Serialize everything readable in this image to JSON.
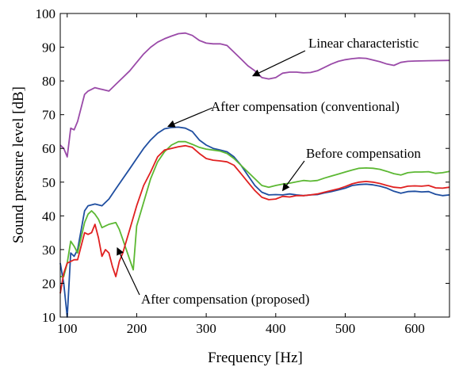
{
  "chart_data": {
    "type": "line",
    "title": "",
    "xlabel": "Frequency [Hz]",
    "ylabel": "Sound pressure level [dB]",
    "xlim": [
      90,
      650
    ],
    "ylim": [
      10,
      100
    ],
    "xticks": [
      100,
      200,
      300,
      400,
      500,
      600
    ],
    "yticks": [
      10,
      20,
      30,
      40,
      50,
      60,
      70,
      80,
      90,
      100
    ],
    "grid": false,
    "series": [
      {
        "name": "Linear characteristic",
        "color": "#9a4aa8",
        "points": [
          [
            90,
            61
          ],
          [
            95,
            60
          ],
          [
            100,
            57.5
          ],
          [
            105,
            66
          ],
          [
            110,
            65.5
          ],
          [
            115,
            68
          ],
          [
            125,
            76
          ],
          [
            130,
            77
          ],
          [
            140,
            78
          ],
          [
            150,
            77.5
          ],
          [
            160,
            77
          ],
          [
            170,
            79
          ],
          [
            180,
            81
          ],
          [
            190,
            83
          ],
          [
            200,
            85.5
          ],
          [
            210,
            88
          ],
          [
            220,
            90
          ],
          [
            230,
            91.5
          ],
          [
            240,
            92.5
          ],
          [
            250,
            93.3
          ],
          [
            260,
            94
          ],
          [
            270,
            94.2
          ],
          [
            280,
            93.5
          ],
          [
            290,
            92
          ],
          [
            300,
            91.2
          ],
          [
            310,
            91
          ],
          [
            320,
            91
          ],
          [
            330,
            90.5
          ],
          [
            340,
            88.5
          ],
          [
            350,
            86.5
          ],
          [
            360,
            84.5
          ],
          [
            370,
            83
          ],
          [
            380,
            81
          ],
          [
            390,
            80.6
          ],
          [
            400,
            81
          ],
          [
            410,
            82.3
          ],
          [
            420,
            82.6
          ],
          [
            430,
            82.6
          ],
          [
            440,
            82.4
          ],
          [
            450,
            82.5
          ],
          [
            460,
            83
          ],
          [
            470,
            84
          ],
          [
            480,
            85
          ],
          [
            490,
            85.8
          ],
          [
            500,
            86.3
          ],
          [
            510,
            86.6
          ],
          [
            520,
            86.8
          ],
          [
            530,
            86.7
          ],
          [
            540,
            86.2
          ],
          [
            550,
            85.7
          ],
          [
            560,
            85
          ],
          [
            570,
            84.6
          ],
          [
            580,
            85.5
          ],
          [
            590,
            85.8
          ],
          [
            600,
            85.9
          ],
          [
            620,
            86
          ],
          [
            650,
            86.1
          ]
        ]
      },
      {
        "name": "After compensation (conventional)",
        "color": "#1f4ea0",
        "points": [
          [
            90,
            26
          ],
          [
            95,
            20
          ],
          [
            100,
            10
          ],
          [
            105,
            29
          ],
          [
            110,
            28
          ],
          [
            115,
            30
          ],
          [
            125,
            41.5
          ],
          [
            130,
            43
          ],
          [
            140,
            43.5
          ],
          [
            150,
            43
          ],
          [
            160,
            45
          ],
          [
            170,
            48
          ],
          [
            180,
            51
          ],
          [
            190,
            54
          ],
          [
            200,
            57
          ],
          [
            210,
            60
          ],
          [
            220,
            62.5
          ],
          [
            230,
            64.5
          ],
          [
            240,
            65.8
          ],
          [
            250,
            66.2
          ],
          [
            260,
            66.3
          ],
          [
            270,
            66
          ],
          [
            280,
            65
          ],
          [
            290,
            62.5
          ],
          [
            300,
            61
          ],
          [
            310,
            60
          ],
          [
            320,
            59.5
          ],
          [
            330,
            59
          ],
          [
            340,
            57.5
          ],
          [
            350,
            55
          ],
          [
            360,
            52
          ],
          [
            370,
            49
          ],
          [
            380,
            47
          ],
          [
            390,
            46.2
          ],
          [
            400,
            46.3
          ],
          [
            410,
            46.2
          ],
          [
            420,
            46.5
          ],
          [
            430,
            46.2
          ],
          [
            440,
            46
          ],
          [
            450,
            46.2
          ],
          [
            460,
            46.3
          ],
          [
            470,
            46.8
          ],
          [
            480,
            47.2
          ],
          [
            490,
            47.7
          ],
          [
            500,
            48.2
          ],
          [
            510,
            49
          ],
          [
            520,
            49.3
          ],
          [
            530,
            49.4
          ],
          [
            540,
            49.2
          ],
          [
            550,
            48.8
          ],
          [
            560,
            48.2
          ],
          [
            570,
            47.3
          ],
          [
            580,
            46.7
          ],
          [
            590,
            47.2
          ],
          [
            600,
            47.3
          ],
          [
            610,
            47.1
          ],
          [
            620,
            47.2
          ],
          [
            630,
            46.4
          ],
          [
            640,
            46
          ],
          [
            650,
            46.2
          ]
        ]
      },
      {
        "name": "Before compensation",
        "color": "#5cb833",
        "points": [
          [
            90,
            22
          ],
          [
            95,
            22
          ],
          [
            100,
            26
          ],
          [
            105,
            32.5
          ],
          [
            110,
            31
          ],
          [
            115,
            29
          ],
          [
            125,
            38
          ],
          [
            130,
            40.5
          ],
          [
            135,
            41.5
          ],
          [
            140,
            40.5
          ],
          [
            145,
            39
          ],
          [
            150,
            36.5
          ],
          [
            155,
            37
          ],
          [
            160,
            37.5
          ],
          [
            170,
            38
          ],
          [
            175,
            36
          ],
          [
            180,
            33
          ],
          [
            190,
            27
          ],
          [
            195,
            24
          ],
          [
            200,
            37
          ],
          [
            210,
            44
          ],
          [
            220,
            51
          ],
          [
            230,
            56
          ],
          [
            240,
            59
          ],
          [
            250,
            61
          ],
          [
            260,
            62
          ],
          [
            270,
            62
          ],
          [
            280,
            61.2
          ],
          [
            290,
            60.3
          ],
          [
            300,
            59.8
          ],
          [
            310,
            59.5
          ],
          [
            320,
            59.2
          ],
          [
            330,
            58.5
          ],
          [
            340,
            57
          ],
          [
            350,
            55
          ],
          [
            360,
            53
          ],
          [
            370,
            51
          ],
          [
            380,
            49
          ],
          [
            390,
            48.5
          ],
          [
            400,
            49
          ],
          [
            410,
            49.4
          ],
          [
            420,
            49.7
          ],
          [
            430,
            50.1
          ],
          [
            440,
            50.5
          ],
          [
            450,
            50.3
          ],
          [
            460,
            50.5
          ],
          [
            470,
            51.2
          ],
          [
            480,
            51.8
          ],
          [
            490,
            52.4
          ],
          [
            500,
            53
          ],
          [
            510,
            53.6
          ],
          [
            520,
            54.1
          ],
          [
            530,
            54.2
          ],
          [
            540,
            54.1
          ],
          [
            550,
            53.8
          ],
          [
            560,
            53.2
          ],
          [
            570,
            52.5
          ],
          [
            580,
            52.1
          ],
          [
            590,
            52.8
          ],
          [
            600,
            53
          ],
          [
            610,
            53
          ],
          [
            620,
            53.1
          ],
          [
            630,
            52.6
          ],
          [
            640,
            52.8
          ],
          [
            650,
            53.2
          ]
        ]
      },
      {
        "name": "After compensation (proposed)",
        "color": "#e02020",
        "points": [
          [
            90,
            17
          ],
          [
            95,
            23
          ],
          [
            100,
            26
          ],
          [
            105,
            26.5
          ],
          [
            110,
            27
          ],
          [
            115,
            27
          ],
          [
            125,
            35
          ],
          [
            130,
            34.5
          ],
          [
            135,
            35
          ],
          [
            140,
            37.5
          ],
          [
            145,
            33.5
          ],
          [
            150,
            28
          ],
          [
            155,
            30
          ],
          [
            160,
            29
          ],
          [
            165,
            25
          ],
          [
            170,
            22
          ],
          [
            175,
            26.5
          ],
          [
            180,
            29
          ],
          [
            190,
            36
          ],
          [
            200,
            43
          ],
          [
            210,
            49
          ],
          [
            220,
            53
          ],
          [
            230,
            57.5
          ],
          [
            240,
            59.5
          ],
          [
            250,
            60
          ],
          [
            260,
            60.5
          ],
          [
            270,
            60.8
          ],
          [
            280,
            60.3
          ],
          [
            290,
            58.5
          ],
          [
            300,
            57
          ],
          [
            310,
            56.5
          ],
          [
            320,
            56.3
          ],
          [
            330,
            56
          ],
          [
            340,
            55
          ],
          [
            350,
            52.5
          ],
          [
            360,
            50
          ],
          [
            370,
            47.5
          ],
          [
            380,
            45.5
          ],
          [
            390,
            44.8
          ],
          [
            400,
            45
          ],
          [
            410,
            45.8
          ],
          [
            420,
            45.6
          ],
          [
            430,
            46
          ],
          [
            440,
            46
          ],
          [
            450,
            46.2
          ],
          [
            460,
            46.5
          ],
          [
            470,
            47
          ],
          [
            480,
            47.5
          ],
          [
            490,
            48
          ],
          [
            500,
            48.7
          ],
          [
            510,
            49.5
          ],
          [
            520,
            50
          ],
          [
            530,
            50.2
          ],
          [
            540,
            50
          ],
          [
            550,
            49.6
          ],
          [
            560,
            49
          ],
          [
            570,
            48.5
          ],
          [
            580,
            48.3
          ],
          [
            590,
            48.8
          ],
          [
            600,
            48.9
          ],
          [
            610,
            48.8
          ],
          [
            620,
            49
          ],
          [
            630,
            48.3
          ],
          [
            640,
            48.2
          ],
          [
            650,
            48.5
          ]
        ]
      }
    ],
    "annotations": [
      {
        "text": "Linear characteristic",
        "arrow_to": [
          367,
          81.5
        ]
      },
      {
        "text": "After compensation (conventional)",
        "arrow_to": [
          245,
          66.5
        ]
      },
      {
        "text": "Before compensation",
        "arrow_to": [
          410,
          47.5
        ]
      },
      {
        "text": "After compensation (proposed)",
        "arrow_to": [
          172,
          30.5
        ]
      }
    ]
  }
}
